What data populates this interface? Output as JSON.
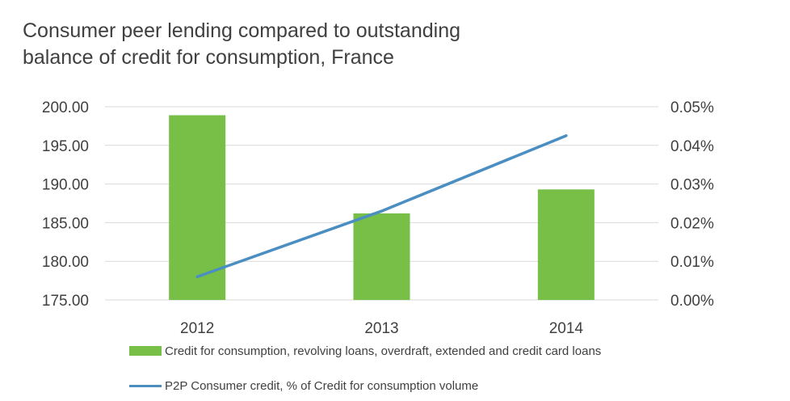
{
  "title_lines": [
    "Consumer peer lending compared to outstanding",
    "balance of credit for consumption, France"
  ],
  "colors": {
    "bar": "#77bf46",
    "line": "#4a8ec2",
    "grid": "#d9d9d9",
    "text": "#404040"
  },
  "chart_data": {
    "type": "bar",
    "title": "Consumer peer lending compared to outstanding balance of credit for consumption, France",
    "categories": [
      "2012",
      "2013",
      "2014"
    ],
    "series": [
      {
        "name": "Credit for consumption, revolving loans, overdraft, extended and credit card loans",
        "type": "bar",
        "axis": "left",
        "values": [
          198.9,
          186.2,
          189.3
        ]
      },
      {
        "name": "P2P Consumer credit, % of Credit for consumption volume",
        "type": "line",
        "axis": "right",
        "values": [
          0.006,
          0.023,
          0.0425
        ]
      }
    ],
    "y_left": {
      "min": 175,
      "max": 200,
      "ticks": [
        "175.00",
        "180.00",
        "185.00",
        "190.00",
        "195.00",
        "200.00"
      ]
    },
    "y_right": {
      "min": 0,
      "max": 0.05,
      "ticks": [
        "0.00%",
        "0.01%",
        "0.02%",
        "0.03%",
        "0.04%",
        "0.05%"
      ]
    },
    "grid": true,
    "legend_position": "bottom"
  }
}
